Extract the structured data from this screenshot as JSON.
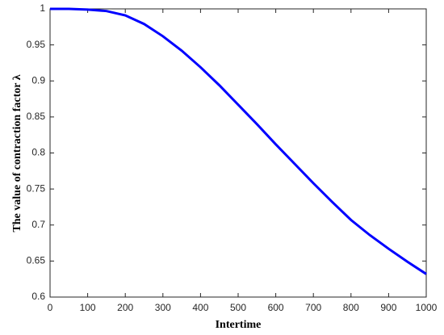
{
  "chart_data": {
    "type": "line",
    "x_label": "Intertime",
    "y_label": "The value of contraction factor λ",
    "x": [
      0,
      50,
      100,
      150,
      200,
      250,
      300,
      350,
      400,
      450,
      500,
      550,
      600,
      650,
      700,
      750,
      800,
      850,
      900,
      950,
      1000
    ],
    "series": [
      {
        "color": "#0000ff",
        "values": [
          1,
          1,
          0.999,
          0.997,
          0.991,
          0.979,
          0.962,
          0.942,
          0.919,
          0.894,
          0.867,
          0.84,
          0.812,
          0.785,
          0.758,
          0.732,
          0.707,
          0.686,
          0.667,
          0.649,
          0.632
        ]
      }
    ],
    "xlim": [
      0,
      1000
    ],
    "xticks": [
      0,
      100,
      200,
      300,
      400,
      500,
      600,
      700,
      800,
      900,
      1000
    ],
    "ylim": [
      0.6,
      1
    ],
    "yticks": [
      0.6,
      0.65,
      0.7,
      0.75,
      0.8,
      0.85,
      0.9,
      0.95,
      1
    ],
    "grid": false
  }
}
